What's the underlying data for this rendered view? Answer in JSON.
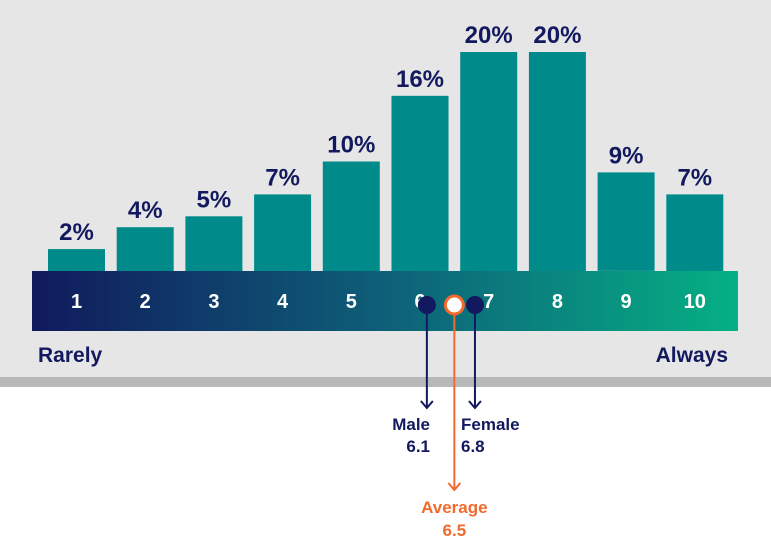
{
  "chart_data": {
    "type": "bar",
    "categories": [
      "1",
      "2",
      "3",
      "4",
      "5",
      "6",
      "7",
      "8",
      "9",
      "10"
    ],
    "values": [
      2,
      4,
      5,
      7,
      10,
      16,
      20,
      20,
      9,
      7
    ],
    "value_labels": [
      "2%",
      "4%",
      "5%",
      "7%",
      "10%",
      "16%",
      "20%",
      "20%",
      "9%",
      "7%"
    ],
    "ylim": [
      0,
      20
    ],
    "scale_start_label": "Rarely",
    "scale_end_label": "Always",
    "markers": [
      {
        "name": "Male",
        "value": 6.1,
        "value_label": "6.1",
        "color": "#13195e"
      },
      {
        "name": "Female",
        "value": 6.8,
        "value_label": "6.8",
        "color": "#13195e"
      },
      {
        "name": "Average",
        "value": 6.5,
        "value_label": "6.5",
        "color": "#f26a2e"
      }
    ],
    "grid": false,
    "legend": "none"
  },
  "colors": {
    "bar": "#008a8a",
    "label": "#13195e",
    "panel": "#e6e6e6",
    "divider": "#b8b8b8",
    "scale_gradient_start": "#101a5c",
    "scale_gradient_mid": "#0e5f78",
    "scale_gradient_end": "#05b084",
    "average": "#f26a2e"
  }
}
